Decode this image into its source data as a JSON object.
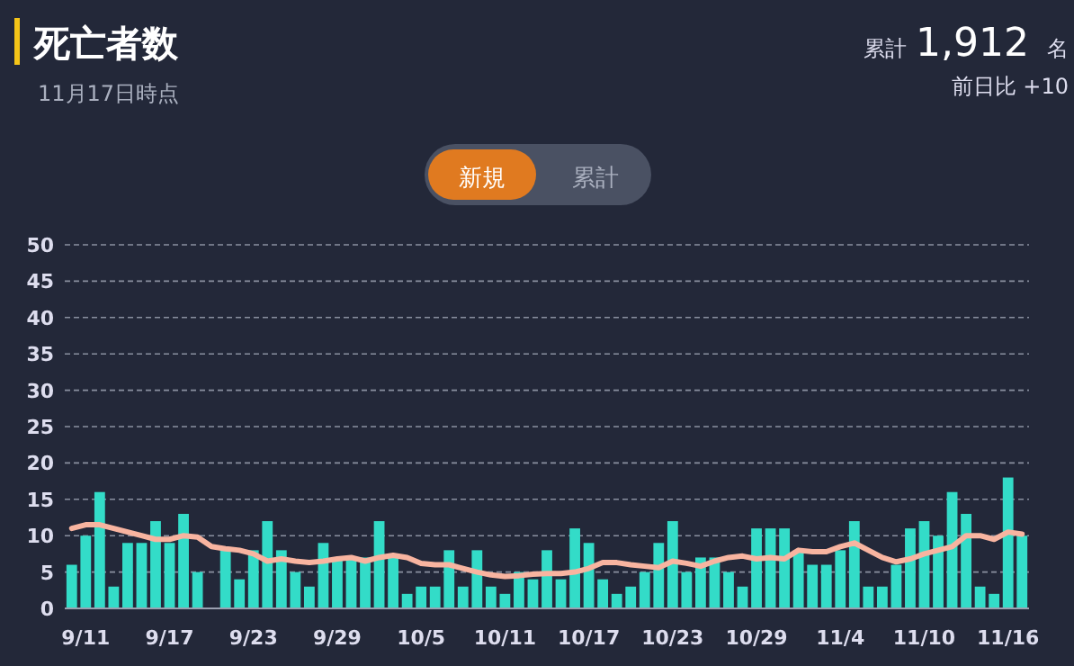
{
  "chart_data": {
    "type": "bar",
    "title": "死亡者数",
    "subtitle": "11月17日時点",
    "annotations": [
      "累計",
      "1,912",
      "名",
      "前日比 +10",
      "新規",
      "累計"
    ],
    "categories": [
      null,
      "9/11",
      null,
      null,
      null,
      null,
      null,
      "9/17",
      null,
      null,
      null,
      null,
      null,
      "9/23",
      null,
      null,
      null,
      null,
      null,
      "9/29",
      null,
      null,
      null,
      null,
      null,
      "10/5",
      null,
      null,
      null,
      null,
      null,
      "10/11",
      null,
      null,
      null,
      null,
      null,
      "10/17",
      null,
      null,
      null,
      null,
      null,
      "10/23",
      null,
      null,
      null,
      null,
      null,
      "10/29",
      null,
      null,
      null,
      null,
      null,
      "11/4",
      null,
      null,
      null,
      null,
      null,
      "11/10",
      null,
      null,
      null,
      null,
      null,
      "11/16",
      null
    ],
    "series": [
      {
        "color": "#33dcc8",
        "values": [
          6,
          10,
          16,
          3,
          9,
          9,
          12,
          9,
          13,
          5,
          0,
          8,
          4,
          8,
          12,
          8,
          5,
          3,
          9,
          7,
          7,
          7,
          12,
          7,
          2,
          3,
          3,
          8,
          3,
          8,
          3,
          2,
          5,
          4,
          8,
          4,
          11,
          9,
          4,
          2,
          3,
          5,
          9,
          12,
          5,
          7,
          7,
          5,
          3,
          11,
          11,
          11,
          8,
          6,
          6,
          8,
          12,
          3,
          3,
          6,
          11,
          12,
          10,
          16,
          13,
          3,
          2,
          18,
          10
        ]
      },
      {
        "type": "line",
        "color": "#f8b4a0",
        "values": [
          11,
          11.5,
          11.5,
          11,
          10.5,
          10,
          9.5,
          9.5,
          10,
          9.8,
          8.5,
          8.2,
          8,
          7.5,
          6.5,
          6.8,
          6.5,
          6.3,
          6.5,
          6.8,
          7,
          6.5,
          7,
          7.3,
          7,
          6.2,
          6,
          6,
          5.5,
          5,
          4.6,
          4.4,
          4.5,
          4.7,
          4.8,
          4.8,
          5,
          5.5,
          6.3,
          6.3,
          6,
          5.8,
          5.6,
          6.5,
          6.2,
          5.8,
          6.5,
          7,
          7.2,
          6.8,
          7,
          6.8,
          8,
          7.8,
          7.8,
          8.5,
          9,
          8,
          7,
          6.4,
          6.8,
          7.5,
          8,
          8.5,
          10,
          10,
          9.5,
          10.5,
          10.2
        ]
      }
    ],
    "ylim": [
      0,
      50
    ],
    "yticks": [
      0,
      5,
      10,
      15,
      20,
      25,
      30,
      35,
      40,
      45,
      50
    ],
    "grid": "y"
  }
}
